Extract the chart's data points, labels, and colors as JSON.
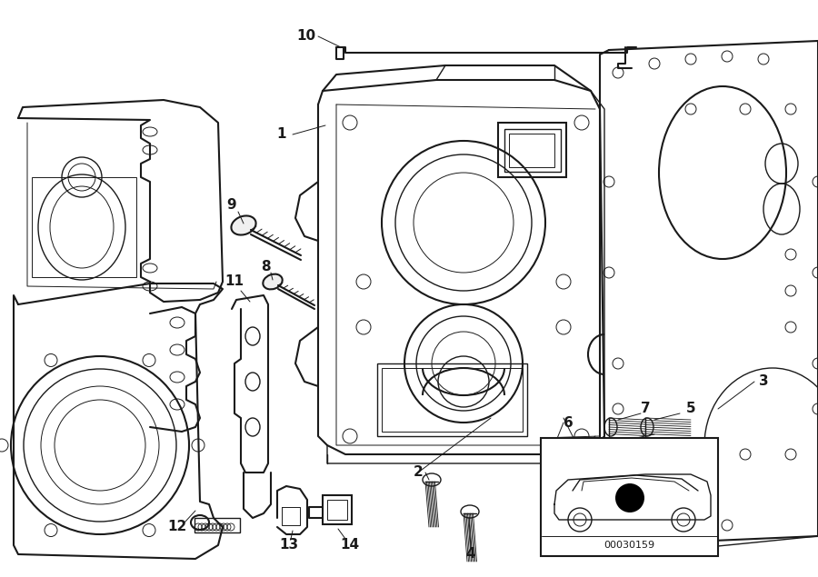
{
  "bg_color": "#ffffff",
  "line_color": "#1a1a1a",
  "fig_width": 9.0,
  "fig_height": 6.35,
  "dpi": 100,
  "diagram_code_text": "00030159"
}
